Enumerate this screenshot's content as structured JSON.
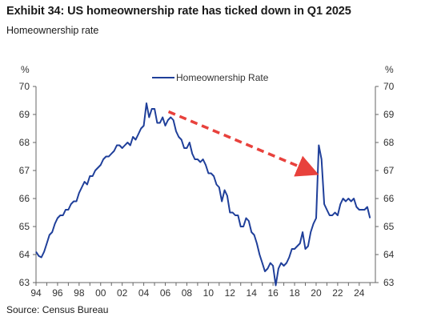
{
  "header": {
    "title": "Exhibit 34: US homeownership rate has ticked down in Q1 2025",
    "subtitle": "Homeownership rate"
  },
  "footer": {
    "source": "Source: Census Bureau"
  },
  "colors": {
    "series": "#1f3f9a",
    "arrow": "#e8413c",
    "axis": "#666666",
    "text": "#333333"
  },
  "chart_data": {
    "type": "line",
    "ylabel_left": "%",
    "ylabel_right": "%",
    "ylim": [
      63,
      70
    ],
    "xlim": [
      1994,
      2025.5
    ],
    "y_ticks": [
      63,
      64,
      65,
      66,
      67,
      68,
      69,
      70
    ],
    "x_tick_labels": [
      "94",
      "96",
      "98",
      "00",
      "02",
      "04",
      "06",
      "08",
      "10",
      "12",
      "14",
      "16",
      "18",
      "20",
      "22",
      "24"
    ],
    "x_tick_years": [
      1994,
      1996,
      1998,
      2000,
      2002,
      2004,
      2006,
      2008,
      2010,
      2012,
      2014,
      2016,
      2018,
      2020,
      2022,
      2024
    ],
    "legend_position": "top-center",
    "series": [
      {
        "name": "Homeownership Rate",
        "x": [
          1994.0,
          1994.25,
          1994.5,
          1994.75,
          1995.0,
          1995.25,
          1995.5,
          1995.75,
          1996.0,
          1996.25,
          1996.5,
          1996.75,
          1997.0,
          1997.25,
          1997.5,
          1997.75,
          1998.0,
          1998.25,
          1998.5,
          1998.75,
          1999.0,
          1999.25,
          1999.5,
          1999.75,
          2000.0,
          2000.25,
          2000.5,
          2000.75,
          2001.0,
          2001.25,
          2001.5,
          2001.75,
          2002.0,
          2002.25,
          2002.5,
          2002.75,
          2003.0,
          2003.25,
          2003.5,
          2003.75,
          2004.0,
          2004.25,
          2004.5,
          2004.75,
          2005.0,
          2005.25,
          2005.5,
          2005.75,
          2006.0,
          2006.25,
          2006.5,
          2006.75,
          2007.0,
          2007.25,
          2007.5,
          2007.75,
          2008.0,
          2008.25,
          2008.5,
          2008.75,
          2009.0,
          2009.25,
          2009.5,
          2009.75,
          2010.0,
          2010.25,
          2010.5,
          2010.75,
          2011.0,
          2011.25,
          2011.5,
          2011.75,
          2012.0,
          2012.25,
          2012.5,
          2012.75,
          2013.0,
          2013.25,
          2013.5,
          2013.75,
          2014.0,
          2014.25,
          2014.5,
          2014.75,
          2015.0,
          2015.25,
          2015.5,
          2015.75,
          2016.0,
          2016.25,
          2016.5,
          2016.75,
          2017.0,
          2017.25,
          2017.5,
          2017.75,
          2018.0,
          2018.25,
          2018.5,
          2018.75,
          2019.0,
          2019.25,
          2019.5,
          2019.75,
          2020.0,
          2020.25,
          2020.5,
          2020.75,
          2021.0,
          2021.25,
          2021.5,
          2021.75,
          2022.0,
          2022.25,
          2022.5,
          2022.75,
          2023.0,
          2023.25,
          2023.5,
          2023.75,
          2024.0,
          2024.25,
          2024.5,
          2024.75,
          2025.0
        ],
        "values": [
          64.1,
          63.95,
          63.9,
          64.1,
          64.4,
          64.7,
          64.8,
          65.1,
          65.3,
          65.4,
          65.4,
          65.6,
          65.6,
          65.8,
          65.9,
          65.9,
          66.2,
          66.4,
          66.6,
          66.5,
          66.8,
          66.8,
          67.0,
          67.1,
          67.2,
          67.4,
          67.5,
          67.5,
          67.6,
          67.7,
          67.9,
          67.9,
          67.8,
          67.9,
          68.0,
          67.9,
          68.2,
          68.1,
          68.3,
          68.5,
          68.6,
          69.4,
          68.9,
          69.2,
          69.2,
          68.7,
          68.7,
          68.9,
          68.6,
          68.8,
          68.9,
          68.8,
          68.4,
          68.2,
          68.1,
          67.8,
          67.8,
          68.0,
          67.6,
          67.4,
          67.4,
          67.3,
          67.4,
          67.2,
          66.9,
          66.9,
          66.8,
          66.5,
          66.4,
          65.9,
          66.3,
          66.1,
          65.5,
          65.5,
          65.4,
          65.4,
          65.0,
          65.0,
          65.3,
          65.2,
          64.8,
          64.7,
          64.4,
          64.0,
          63.7,
          63.4,
          63.5,
          63.7,
          63.6,
          62.9,
          63.5,
          63.7,
          63.6,
          63.7,
          63.9,
          64.2,
          64.2,
          64.3,
          64.4,
          64.8,
          64.2,
          64.3,
          64.8,
          65.1,
          65.3,
          67.9,
          67.4,
          65.8,
          65.6,
          65.4,
          65.4,
          65.5,
          65.4,
          65.8,
          66.0,
          65.9,
          66.0,
          65.9,
          66.0,
          65.7,
          65.6,
          65.6,
          65.6,
          65.7,
          65.3
        ],
        "color": "#1f3f9a"
      }
    ],
    "annotations": [
      {
        "type": "dashed-arrow",
        "from": [
          2006.3,
          69.1
        ],
        "to": [
          2019.3,
          67.0
        ],
        "color": "#e8413c"
      }
    ]
  }
}
